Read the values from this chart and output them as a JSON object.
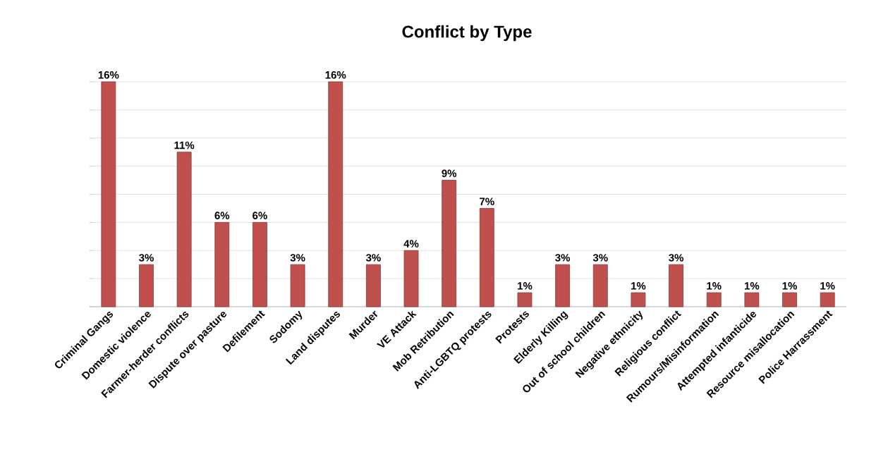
{
  "chart_data": {
    "type": "bar",
    "title": "Conflict by Type",
    "categories": [
      "Criminal Gangs",
      "Domestic violence",
      "Farmer-herder conflicts",
      "Dispute over pasture",
      "Defilement",
      "Sodomy",
      "Land disputes",
      "Murder",
      "VE Attack",
      "Mob Retribution",
      "Anti-LGBTQ protests",
      "Protests",
      "Elderly Killing",
      "Out of school children",
      "Negative ethnicity",
      "Religious conflict",
      "Rumours/Misinformation",
      "Attempted infanticide",
      "Resource misallocation",
      "Police Harrassment"
    ],
    "values": [
      16,
      3,
      11,
      6,
      6,
      3,
      16,
      3,
      4,
      9,
      7,
      1,
      3,
      3,
      1,
      3,
      1,
      1,
      1,
      1
    ],
    "value_labels": [
      "16%",
      "3%",
      "11%",
      "6%",
      "6%",
      "3%",
      "16%",
      "3%",
      "4%",
      "9%",
      "7%",
      "1%",
      "3%",
      "3%",
      "1%",
      "3%",
      "1%",
      "1%",
      "1%",
      "1%"
    ],
    "color": "#c0504d",
    "ylim": [
      0,
      16
    ],
    "yticks": [
      {
        "value": 0,
        "label": null
      },
      {
        "value": 2,
        "label": null
      },
      {
        "value": 4,
        "label": null
      },
      {
        "value": 6,
        "label": null
      },
      {
        "value": 8,
        "label": null
      },
      {
        "value": 10,
        "label": null
      },
      {
        "value": 12,
        "label": null
      },
      {
        "value": 14,
        "label": null
      },
      {
        "value": 16,
        "label": null
      }
    ],
    "grid": "y",
    "tick_labels": "x"
  }
}
